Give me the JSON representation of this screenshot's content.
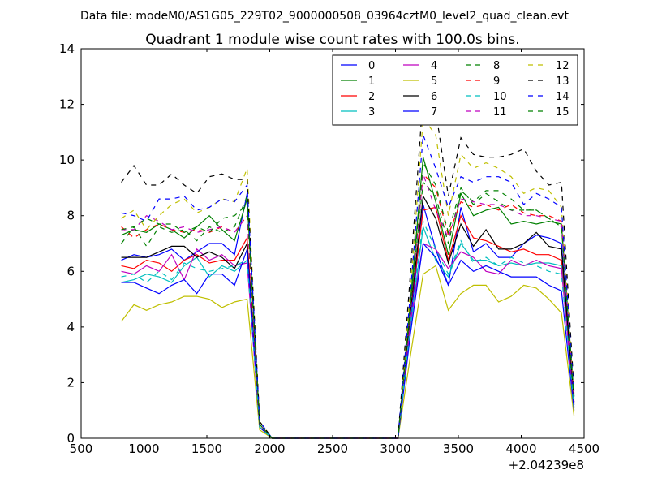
{
  "chart_data": {
    "type": "line",
    "suptitle": "Data file: modeM0/AS1G05_229T02_9000000508_03964cztM0_level2_quad_clean.evt",
    "title": "Quadrant 1 module wise count rates with 100.0s bins.",
    "xlabel": "",
    "ylabel": "",
    "x_offset_label": "+2.04239e8",
    "xlim": [
      500,
      4500
    ],
    "ylim": [
      0,
      14
    ],
    "xticks": [
      500,
      1000,
      1500,
      2000,
      2500,
      3000,
      3500,
      4000,
      4500
    ],
    "yticks": [
      0,
      2,
      4,
      6,
      8,
      10,
      12,
      14
    ],
    "grid": false,
    "legend_position": "top-right",
    "x": [
      820,
      920,
      1020,
      1120,
      1220,
      1320,
      1420,
      1520,
      1620,
      1720,
      1820,
      1920,
      2020,
      2120,
      2220,
      2320,
      2420,
      2520,
      2620,
      2720,
      2820,
      2920,
      3020,
      3120,
      3220,
      3320,
      3420,
      3520,
      3620,
      3720,
      3820,
      3920,
      4020,
      4120,
      4220,
      4320,
      4420
    ],
    "series": [
      {
        "name": "0",
        "color": "#0000ff",
        "dash": false,
        "values": [
          6.4,
          6.6,
          6.5,
          6.6,
          6.8,
          6.4,
          6.7,
          7.0,
          7.0,
          6.6,
          8.8,
          0.4,
          0,
          0,
          0,
          0,
          0,
          0,
          0,
          0,
          0,
          0,
          0,
          4.2,
          8.4,
          6.8,
          5.5,
          8.3,
          6.7,
          7.0,
          6.5,
          6.5,
          7.0,
          7.3,
          7.2,
          7.0,
          1.2
        ]
      },
      {
        "name": "1",
        "color": "#008000",
        "dash": false,
        "values": [
          7.3,
          7.5,
          7.4,
          7.7,
          7.5,
          7.2,
          7.6,
          8.0,
          7.5,
          7.1,
          8.6,
          0.5,
          0,
          0,
          0,
          0,
          0,
          0,
          0,
          0,
          0,
          0,
          0,
          5.0,
          10.1,
          8.5,
          6.6,
          8.8,
          8.0,
          8.2,
          8.3,
          7.7,
          7.8,
          7.7,
          7.8,
          7.7,
          1.5
        ]
      },
      {
        "name": "2",
        "color": "#ff0000",
        "dash": false,
        "values": [
          6.2,
          6.1,
          6.4,
          6.3,
          6.0,
          6.4,
          6.6,
          6.3,
          6.4,
          6.4,
          7.2,
          0.4,
          0,
          0,
          0,
          0,
          0,
          0,
          0,
          0,
          0,
          0,
          0,
          4.6,
          8.2,
          8.3,
          6.4,
          8.0,
          7.2,
          7.1,
          6.9,
          6.7,
          6.8,
          6.6,
          6.6,
          6.4,
          1.3
        ]
      },
      {
        "name": "3",
        "color": "#00bfbf",
        "dash": false,
        "values": [
          5.6,
          5.7,
          5.9,
          5.8,
          5.6,
          6.2,
          6.5,
          5.8,
          6.2,
          6.0,
          6.4,
          0.4,
          0,
          0,
          0,
          0,
          0,
          0,
          0,
          0,
          0,
          0,
          0,
          4.0,
          7.6,
          6.4,
          5.8,
          7.0,
          6.4,
          6.4,
          6.2,
          6.3,
          6.2,
          6.3,
          6.3,
          6.2,
          1.1
        ]
      },
      {
        "name": "4",
        "color": "#bf00bf",
        "dash": false,
        "values": [
          6.0,
          5.9,
          6.2,
          6.0,
          6.6,
          5.7,
          6.8,
          6.4,
          6.6,
          6.2,
          6.3,
          0.4,
          0,
          0,
          0,
          0,
          0,
          0,
          0,
          0,
          0,
          0,
          0,
          4.2,
          7.0,
          6.8,
          6.1,
          6.7,
          6.5,
          6.0,
          5.9,
          6.4,
          6.2,
          6.4,
          6.2,
          6.1,
          1.1
        ]
      },
      {
        "name": "5",
        "color": "#bfbf00",
        "dash": false,
        "values": [
          4.2,
          4.8,
          4.6,
          4.8,
          4.9,
          5.1,
          5.1,
          5.0,
          4.7,
          4.9,
          5.0,
          0.3,
          0,
          0,
          0,
          0,
          0,
          0,
          0,
          0,
          0,
          0,
          0,
          3.0,
          5.9,
          6.2,
          4.6,
          5.2,
          5.5,
          5.5,
          4.9,
          5.1,
          5.5,
          5.4,
          5.0,
          4.5,
          0.8
        ]
      },
      {
        "name": "6",
        "color": "#000000",
        "dash": false,
        "values": [
          6.5,
          6.5,
          6.5,
          6.7,
          6.9,
          6.9,
          6.5,
          6.7,
          6.5,
          6.1,
          7.0,
          0.4,
          0,
          0,
          0,
          0,
          0,
          0,
          0,
          0,
          0,
          0,
          0,
          4.6,
          8.7,
          7.9,
          6.3,
          7.7,
          6.9,
          7.5,
          6.8,
          6.8,
          7.0,
          7.4,
          6.9,
          6.8,
          1.3
        ]
      },
      {
        "name": "7",
        "color": "#0000ff",
        "dash": false,
        "values": [
          5.6,
          5.6,
          5.4,
          5.2,
          5.5,
          5.7,
          5.2,
          5.9,
          5.9,
          5.5,
          6.8,
          0.4,
          0,
          0,
          0,
          0,
          0,
          0,
          0,
          0,
          0,
          0,
          0,
          3.8,
          7.0,
          6.5,
          5.5,
          6.4,
          6.0,
          6.2,
          6.0,
          5.8,
          5.8,
          5.8,
          5.5,
          5.3,
          1.0
        ]
      },
      {
        "name": "8",
        "color": "#008000",
        "dash": true,
        "values": [
          7.0,
          7.6,
          6.9,
          7.6,
          7.4,
          7.5,
          7.1,
          7.6,
          7.4,
          7.6,
          8.7,
          0.5,
          0,
          0,
          0,
          0,
          0,
          0,
          0,
          0,
          0,
          0,
          0,
          4.9,
          9.2,
          8.7,
          7.0,
          8.9,
          8.5,
          8.9,
          8.9,
          8.6,
          8.2,
          8.2,
          7.9,
          7.6,
          1.5
        ]
      },
      {
        "name": "9",
        "color": "#ff0000",
        "dash": true,
        "values": [
          7.6,
          7.2,
          7.5,
          7.7,
          7.5,
          7.4,
          7.5,
          7.4,
          7.6,
          7.4,
          8.0,
          0.5,
          0,
          0,
          0,
          0,
          0,
          0,
          0,
          0,
          0,
          0,
          0,
          4.8,
          9.5,
          9.0,
          7.3,
          8.5,
          8.3,
          8.4,
          8.2,
          8.4,
          8.1,
          8.0,
          8.0,
          7.8,
          1.4
        ]
      },
      {
        "name": "10",
        "color": "#00bfbf",
        "dash": true,
        "values": [
          5.8,
          5.9,
          5.6,
          6.0,
          5.7,
          6.3,
          6.1,
          6.0,
          6.1,
          6.2,
          6.4,
          0.4,
          0,
          0,
          0,
          0,
          0,
          0,
          0,
          0,
          0,
          0,
          0,
          4.1,
          7.8,
          6.8,
          5.9,
          7.1,
          6.3,
          6.5,
          6.2,
          6.5,
          6.3,
          6.2,
          6.0,
          5.9,
          1.1
        ]
      },
      {
        "name": "11",
        "color": "#bf00bf",
        "dash": true,
        "values": [
          7.5,
          7.5,
          8.0,
          7.8,
          7.5,
          7.6,
          7.4,
          7.5,
          7.6,
          7.4,
          8.0,
          0.5,
          0,
          0,
          0,
          0,
          0,
          0,
          0,
          0,
          0,
          0,
          0,
          4.7,
          9.5,
          8.2,
          7.2,
          8.6,
          8.5,
          8.4,
          8.4,
          8.2,
          8.0,
          8.0,
          7.9,
          7.8,
          1.4
        ]
      },
      {
        "name": "12",
        "color": "#bfbf00",
        "dash": true,
        "values": [
          7.9,
          8.2,
          7.5,
          8.0,
          8.4,
          8.6,
          8.1,
          8.3,
          8.6,
          8.5,
          9.7,
          0.6,
          0,
          0,
          0,
          0,
          0,
          0,
          0,
          0,
          0,
          0,
          0,
          5.4,
          11.5,
          10.9,
          8.0,
          10.2,
          9.7,
          9.9,
          9.7,
          9.4,
          8.8,
          9.0,
          8.9,
          8.3,
          1.6
        ]
      },
      {
        "name": "13",
        "color": "#000000",
        "dash": true,
        "values": [
          9.2,
          9.8,
          9.1,
          9.1,
          9.5,
          9.1,
          8.8,
          9.4,
          9.5,
          9.3,
          9.3,
          0.6,
          0,
          0,
          0,
          0,
          0,
          0,
          0,
          0,
          0,
          0,
          0,
          6.0,
          12.3,
          11.8,
          8.7,
          10.8,
          10.2,
          10.1,
          10.1,
          10.2,
          10.4,
          9.6,
          9.1,
          9.2,
          1.7
        ]
      },
      {
        "name": "14",
        "color": "#0000ff",
        "dash": true,
        "values": [
          8.1,
          8.0,
          7.8,
          8.6,
          8.6,
          8.7,
          8.2,
          8.3,
          8.6,
          8.5,
          9.1,
          0.6,
          0,
          0,
          0,
          0,
          0,
          0,
          0,
          0,
          0,
          0,
          0,
          5.3,
          10.9,
          9.7,
          8.3,
          9.4,
          9.2,
          9.4,
          9.4,
          9.2,
          8.4,
          8.8,
          8.6,
          8.3,
          1.5
        ]
      },
      {
        "name": "15",
        "color": "#008000",
        "dash": true,
        "values": [
          7.5,
          7.6,
          7.9,
          7.7,
          7.7,
          7.4,
          7.6,
          7.4,
          7.9,
          8.0,
          8.4,
          0.5,
          0,
          0,
          0,
          0,
          0,
          0,
          0,
          0,
          0,
          0,
          0,
          4.8,
          9.9,
          9.1,
          7.4,
          9.0,
          8.4,
          8.8,
          8.5,
          8.2,
          8.2,
          8.2,
          7.9,
          7.6,
          1.4
        ]
      }
    ]
  }
}
